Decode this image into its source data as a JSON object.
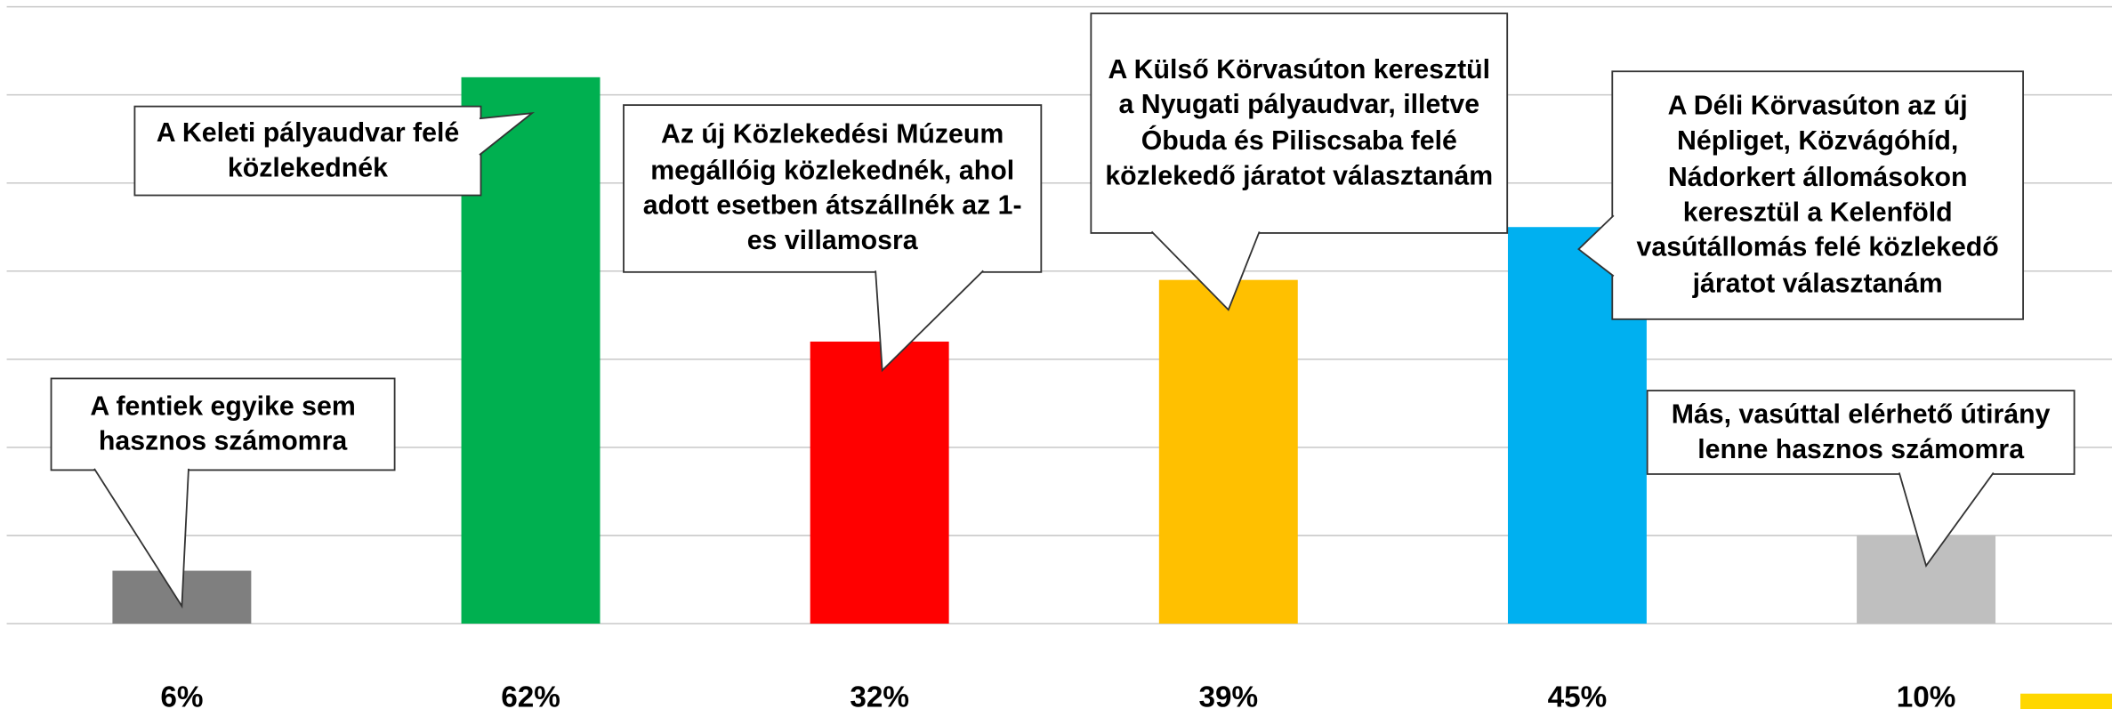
{
  "chart_data": {
    "type": "bar",
    "categories": [
      "A fentiek egyike sem hasznos számomra",
      "A Keleti pályaudvar felé közlekednék",
      "Az új Közlekedési Múzeum megállóig közlekednék, ahol adott esetben átszállnék az 1-es villamosra",
      "A Külső Körvasúton keresztül a Nyugati pályaudvar, illetve Óbuda és Piliscsaba felé közlekedő járatot választanám",
      "A Déli Körvasúton az új Népliget, Közvágóhíd, Nádorkert állomásokon keresztül a Kelenföld vasútállomás felé közlekedő járatot választanám",
      "Más, vasúttal elérhető útirány lenne hasznos számomra"
    ],
    "values": [
      6,
      62,
      32,
      39,
      45,
      10
    ],
    "value_labels": [
      "6%",
      "62%",
      "32%",
      "39%",
      "45%",
      "10%"
    ],
    "colors": [
      "#7f7f7f",
      "#00b050",
      "#ff0000",
      "#ffc000",
      "#00b0f0",
      "#bfbfbf"
    ],
    "ylim": [
      0,
      70
    ],
    "yticks": [
      0,
      10,
      20,
      30,
      40,
      50,
      60,
      70
    ],
    "grid": true
  }
}
